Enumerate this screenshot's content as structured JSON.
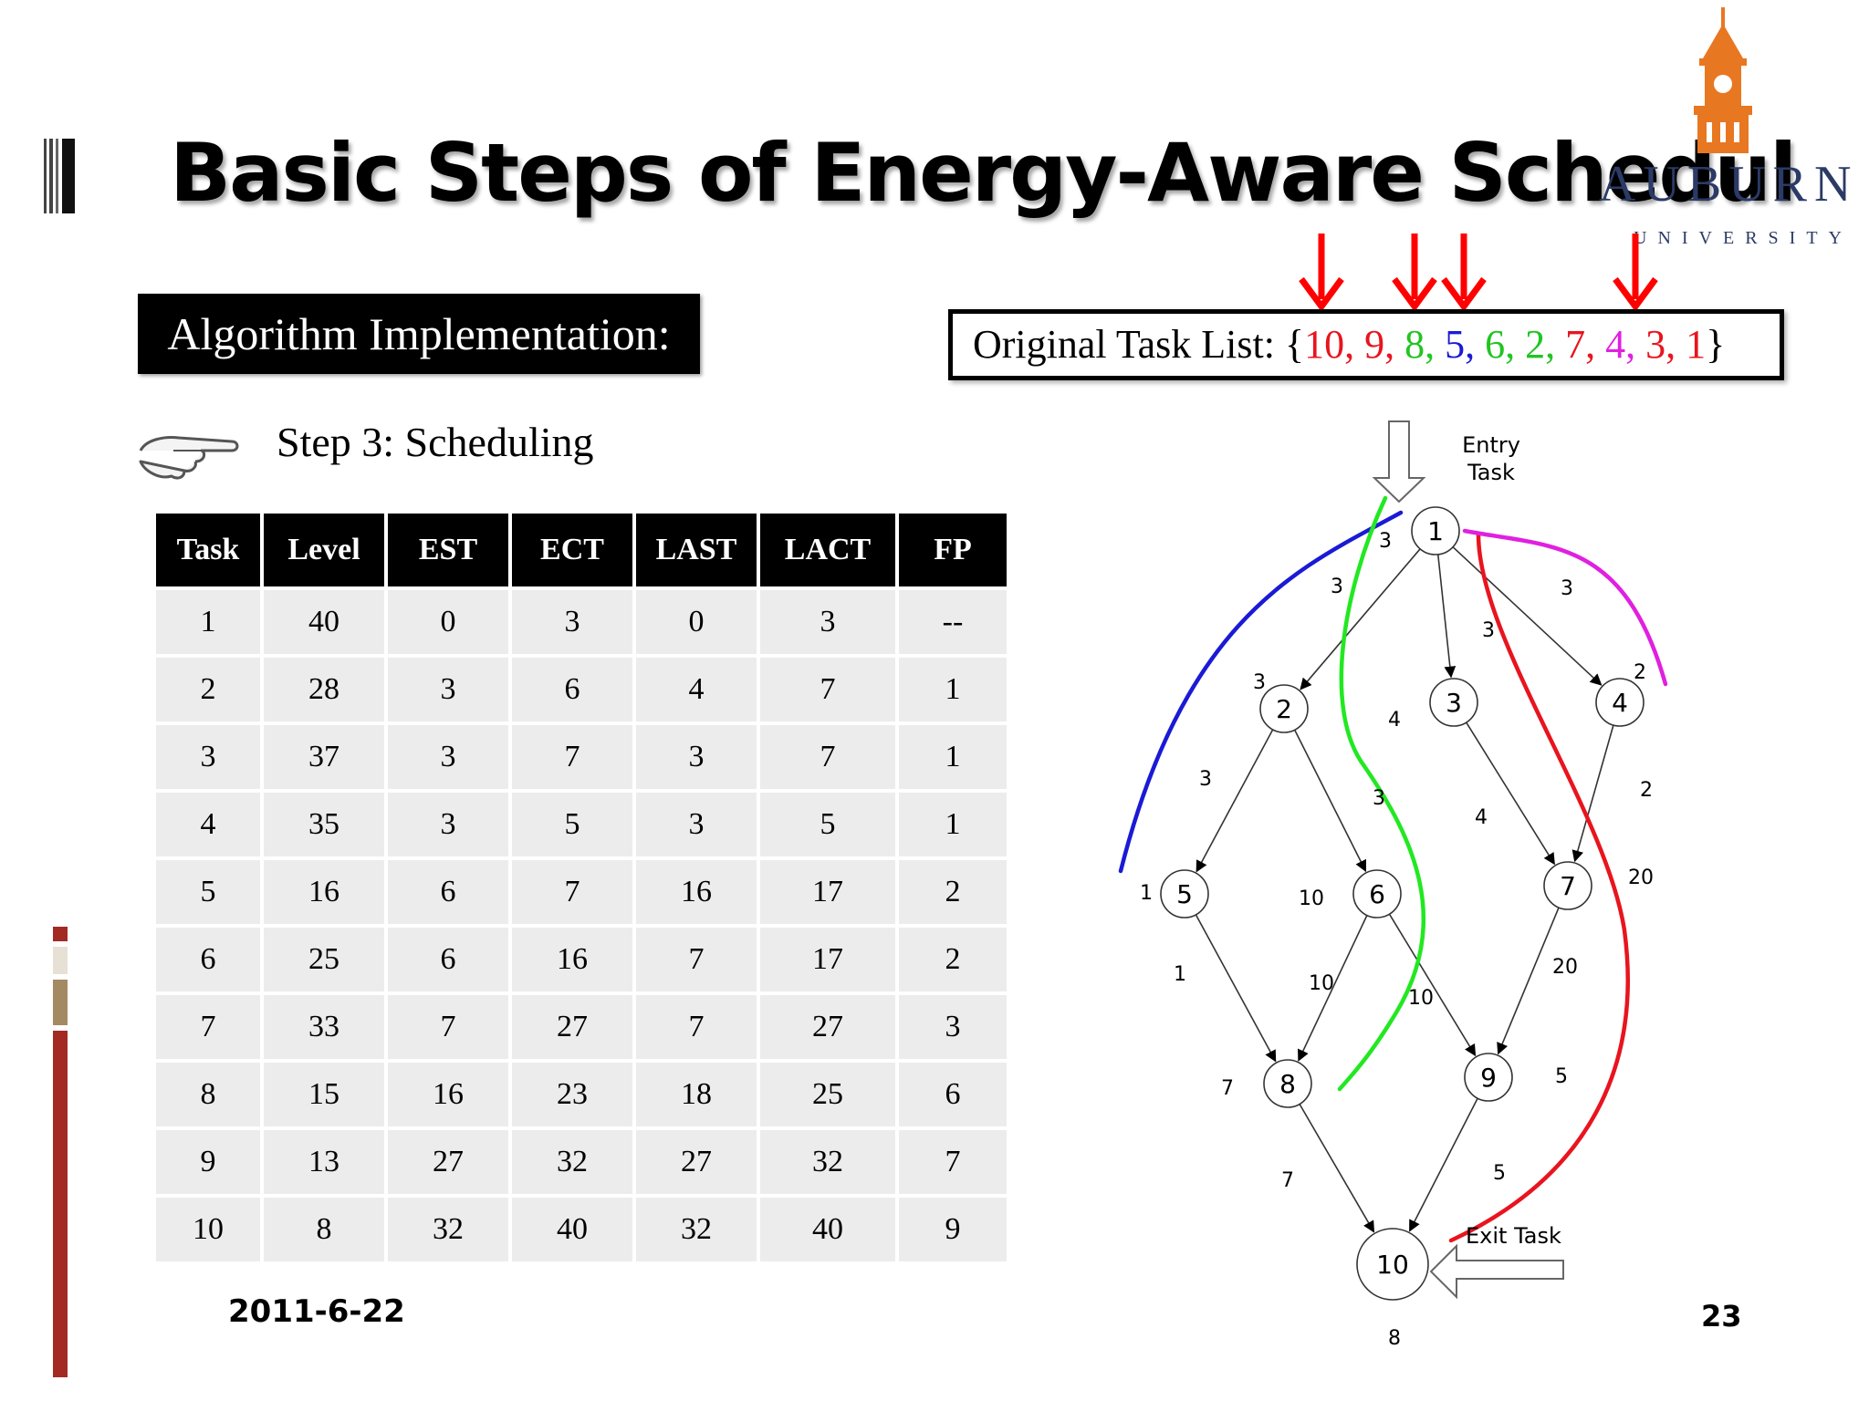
{
  "header": {
    "title": "Basic Steps of Energy-Aware Schedul"
  },
  "logo": {
    "wordmark": "AUBURN",
    "subline": "UNIVERSITY",
    "tower_color": "#e87722",
    "text_color": "#2b3a66"
  },
  "algorithm_box": {
    "label": "Algorithm Implementation:"
  },
  "task_list": {
    "label": "Original Task List:",
    "open_brace": "{",
    "close_brace": "}",
    "items": [
      {
        "value": "10",
        "color": "#e8141e"
      },
      {
        "value": "9",
        "color": "#e8141e"
      },
      {
        "value": "8",
        "color": "#22c422"
      },
      {
        "value": "5",
        "color": "#1a1ad6"
      },
      {
        "value": "6",
        "color": "#22c422"
      },
      {
        "value": "2",
        "color": "#22c422"
      },
      {
        "value": "7",
        "color": "#e8141e"
      },
      {
        "value": "4",
        "color": "#e020e0"
      },
      {
        "value": "3",
        "color": "#e8141e"
      },
      {
        "value": "1",
        "color": "#e8141e"
      }
    ],
    "arrow_color": "#ff0000"
  },
  "step": {
    "icon": "pointing-hand-icon",
    "label": "Step 3: Scheduling"
  },
  "table": {
    "headers": [
      "Task",
      "Level",
      "EST",
      "ECT",
      "LAST",
      "LACT",
      "FP"
    ],
    "rows": [
      [
        "1",
        "40",
        "0",
        "3",
        "0",
        "3",
        "--"
      ],
      [
        "2",
        "28",
        "3",
        "6",
        "4",
        "7",
        "1"
      ],
      [
        "3",
        "37",
        "3",
        "7",
        "3",
        "7",
        "1"
      ],
      [
        "4",
        "35",
        "3",
        "5",
        "3",
        "5",
        "1"
      ],
      [
        "5",
        "16",
        "6",
        "7",
        "16",
        "17",
        "2"
      ],
      [
        "6",
        "25",
        "6",
        "16",
        "7",
        "17",
        "2"
      ],
      [
        "7",
        "33",
        "7",
        "27",
        "7",
        "27",
        "3"
      ],
      [
        "8",
        "15",
        "16",
        "23",
        "18",
        "25",
        "6"
      ],
      [
        "9",
        "13",
        "27",
        "32",
        "27",
        "32",
        "7"
      ],
      [
        "10",
        "8",
        "32",
        "40",
        "32",
        "40",
        "9"
      ]
    ]
  },
  "dag": {
    "entry_label_1": "Entry",
    "entry_label_2": "Task",
    "exit_label": "Exit Task",
    "nodes": [
      {
        "id": "1",
        "weight": "3"
      },
      {
        "id": "2",
        "weight": "3"
      },
      {
        "id": "3",
        "weight": "4"
      },
      {
        "id": "4",
        "weight": "2"
      },
      {
        "id": "5",
        "weight": "1"
      },
      {
        "id": "6",
        "weight": "10"
      },
      {
        "id": "7",
        "weight": "20"
      },
      {
        "id": "8",
        "weight": "7"
      },
      {
        "id": "9",
        "weight": "5"
      },
      {
        "id": "10",
        "weight": "8"
      }
    ],
    "edges": [
      {
        "from": "1",
        "to": "2",
        "label": "3"
      },
      {
        "from": "1",
        "to": "3",
        "label": "3"
      },
      {
        "from": "1",
        "to": "4",
        "label": "3"
      },
      {
        "from": "2",
        "to": "5",
        "label": "3"
      },
      {
        "from": "2",
        "to": "6",
        "label": "3"
      },
      {
        "from": "3",
        "to": "7",
        "label": "4"
      },
      {
        "from": "4",
        "to": "7",
        "label": "2"
      },
      {
        "from": "5",
        "to": "8",
        "label": "1"
      },
      {
        "from": "6",
        "to": "8",
        "label": "10"
      },
      {
        "from": "6",
        "to": "9",
        "label": "10"
      },
      {
        "from": "7",
        "to": "9",
        "label": "20"
      },
      {
        "from": "8",
        "to": "10",
        "label": "7"
      },
      {
        "from": "9",
        "to": "10",
        "label": "5"
      }
    ],
    "path_colors": {
      "blue": "#1a1ad6",
      "green": "#22e822",
      "red": "#e8141e",
      "magenta": "#e020e0"
    }
  },
  "footer": {
    "date": "2011-6-22",
    "page_number": "23"
  }
}
